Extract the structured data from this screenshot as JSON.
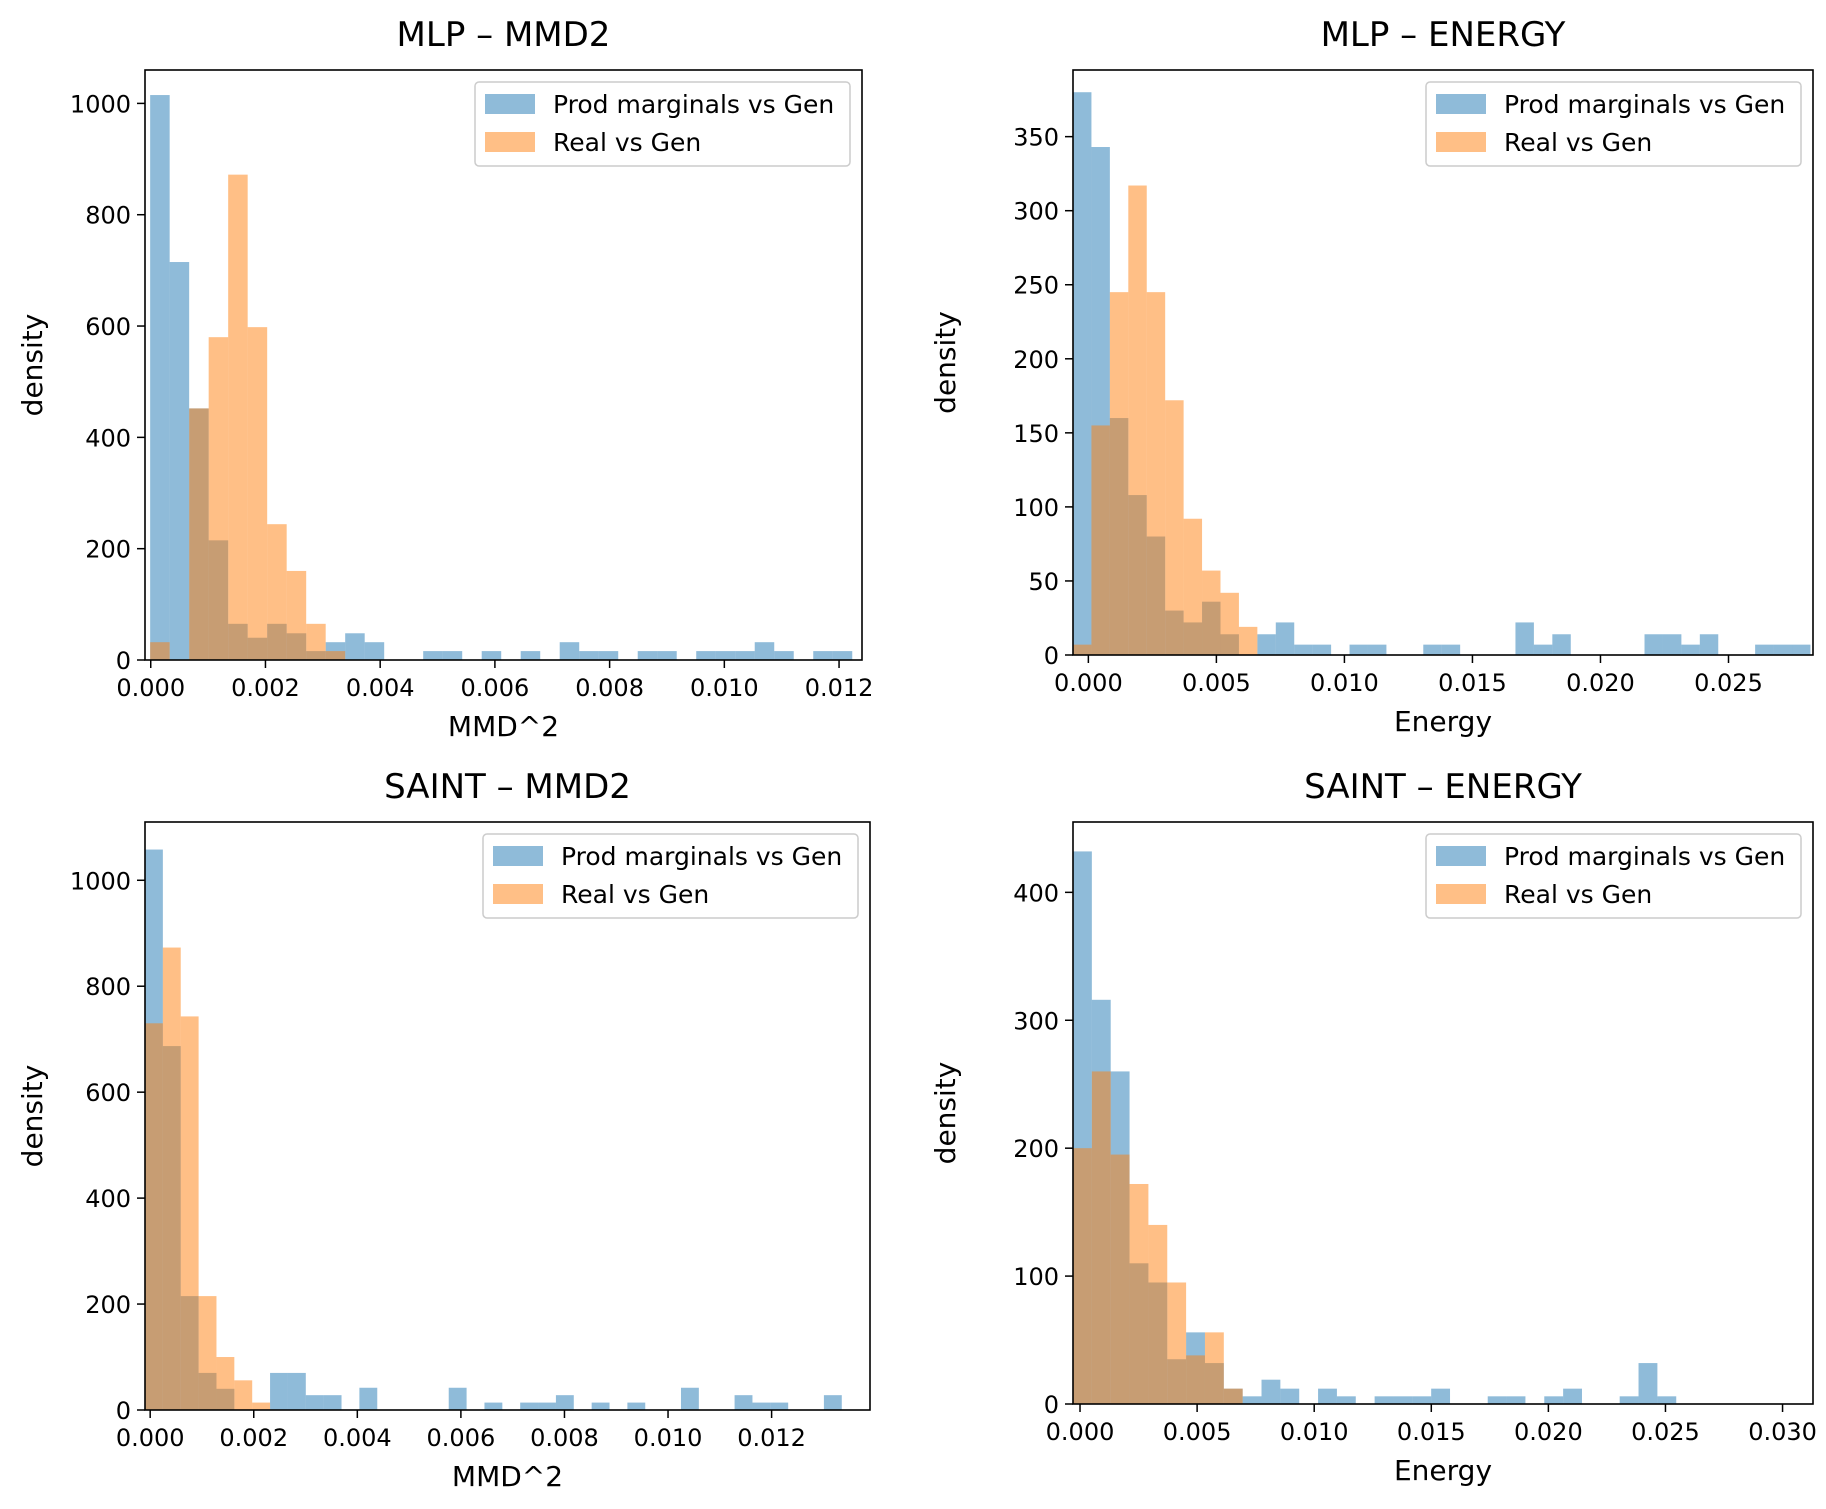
{
  "colors": {
    "prod": "#1f77b4",
    "real": "#ff7f0e",
    "bar_alpha": 0.5,
    "legend_border": "#cccccc",
    "axis": "#000000"
  },
  "chart_data": [
    {
      "type": "bar",
      "title": "MLP – MMD2",
      "xlabel": "MMD^2",
      "ylabel": "density",
      "xlim": [
        -0.0001,
        0.0124
      ],
      "ylim": [
        0,
        1060
      ],
      "xticks": [
        0.0,
        0.002,
        0.004,
        0.006,
        0.008,
        0.01,
        0.012
      ],
      "xtick_labels": [
        "0.000",
        "0.002",
        "0.004",
        "0.006",
        "0.008",
        "0.010",
        "0.012"
      ],
      "yticks": [
        0,
        200,
        400,
        600,
        800,
        1000
      ],
      "ytick_labels": [
        "0",
        "200",
        "400",
        "600",
        "800",
        "1000"
      ],
      "legend": "top-right",
      "series": [
        {
          "name": "Prod marginals vs Gen",
          "color_key": "prod",
          "bin_start": -1e-05,
          "bin_width": 0.00034,
          "values": [
            1015,
            715,
            452,
            215,
            65,
            40,
            65,
            48,
            16,
            32,
            48,
            32,
            0,
            0,
            16,
            16,
            0,
            16,
            0,
            16,
            0,
            32,
            16,
            16,
            0,
            16,
            16,
            0,
            16,
            16,
            16,
            32,
            16,
            0,
            16,
            16
          ]
        },
        {
          "name": "Real vs Gen",
          "color_key": "real",
          "bin_start": -1e-05,
          "bin_width": 0.00034,
          "values": [
            32,
            0,
            452,
            580,
            872,
            598,
            244,
            160,
            65,
            16,
            0,
            0,
            0,
            0,
            0,
            0,
            0,
            0,
            0,
            0,
            0,
            0,
            0,
            0,
            0,
            0,
            0,
            0,
            0,
            0,
            0,
            0,
            0,
            0,
            0,
            0
          ]
        }
      ]
    },
    {
      "type": "bar",
      "title": "MLP – ENERGY",
      "xlabel": "Energy",
      "ylabel": "density",
      "xlim": [
        -0.0006,
        0.0283
      ],
      "ylim": [
        0,
        395
      ],
      "xticks": [
        0.0,
        0.005,
        0.01,
        0.015,
        0.02,
        0.025
      ],
      "xtick_labels": [
        "0.000",
        "0.005",
        "0.010",
        "0.015",
        "0.020",
        "0.025"
      ],
      "yticks": [
        0,
        50,
        100,
        150,
        200,
        250,
        300,
        350
      ],
      "ytick_labels": [
        "0",
        "50",
        "100",
        "150",
        "200",
        "250",
        "300",
        "350"
      ],
      "legend": "top-right",
      "series": [
        {
          "name": "Prod marginals vs Gen",
          "color_key": "prod",
          "bin_start": -0.0006,
          "bin_width": 0.00072,
          "values": [
            380,
            343,
            160,
            108,
            80,
            30,
            22,
            36,
            14,
            0,
            14,
            22,
            7,
            7,
            0,
            7,
            7,
            0,
            0,
            7,
            7,
            0,
            0,
            0,
            22,
            7,
            14,
            0,
            0,
            0,
            0,
            14,
            14,
            7,
            14,
            0,
            0,
            7,
            7,
            7
          ]
        },
        {
          "name": "Real vs Gen",
          "color_key": "real",
          "bin_start": -0.0006,
          "bin_width": 0.00072,
          "values": [
            7,
            155,
            245,
            317,
            245,
            172,
            92,
            57,
            42,
            19,
            0,
            0,
            0,
            0,
            0,
            0,
            0,
            0,
            0,
            0,
            0,
            0,
            0,
            0,
            0,
            0,
            0,
            0,
            0,
            0,
            0,
            0,
            0,
            0,
            0,
            0,
            0,
            0,
            0,
            0
          ]
        }
      ]
    },
    {
      "type": "bar",
      "title": "SAINT – MMD2",
      "xlabel": "MMD^2",
      "ylabel": "density",
      "xlim": [
        -0.0001,
        0.0139
      ],
      "ylim": [
        0,
        1110
      ],
      "xticks": [
        0.0,
        0.002,
        0.004,
        0.006,
        0.008,
        0.01,
        0.012
      ],
      "xtick_labels": [
        "0.000",
        "0.002",
        "0.004",
        "0.006",
        "0.008",
        "0.010",
        "0.012"
      ],
      "yticks": [
        0,
        200,
        400,
        600,
        800,
        1000
      ],
      "ytick_labels": [
        "0",
        "200",
        "400",
        "600",
        "800",
        "1000"
      ],
      "legend": "top-right",
      "series": [
        {
          "name": "Prod marginals vs Gen",
          "color_key": "prod",
          "bin_start": -0.0001,
          "bin_width": 0.000345,
          "values": [
            1058,
            687,
            215,
            70,
            40,
            0,
            0,
            70,
            70,
            28,
            28,
            0,
            42,
            0,
            0,
            0,
            0,
            42,
            0,
            14,
            0,
            14,
            14,
            28,
            0,
            14,
            0,
            14,
            0,
            0,
            42,
            0,
            0,
            28,
            14,
            14,
            0,
            0,
            28,
            0
          ]
        },
        {
          "name": "Real vs Gen",
          "color_key": "real",
          "bin_start": -0.0001,
          "bin_width": 0.000345,
          "values": [
            730,
            873,
            743,
            215,
            100,
            56,
            14,
            0,
            0,
            0,
            0,
            0,
            0,
            0,
            0,
            0,
            0,
            0,
            0,
            0,
            0,
            0,
            0,
            0,
            0,
            0,
            0,
            0,
            0,
            0,
            0,
            0,
            0,
            0,
            0,
            0,
            0,
            0,
            0,
            0
          ]
        }
      ]
    },
    {
      "type": "bar",
      "title": "SAINT – ENERGY",
      "xlabel": "Energy",
      "ylabel": "density",
      "xlim": [
        -0.0003,
        0.0313
      ],
      "ylim": [
        0,
        455
      ],
      "xticks": [
        0.0,
        0.005,
        0.01,
        0.015,
        0.02,
        0.025,
        0.03
      ],
      "xtick_labels": [
        "0.000",
        "0.005",
        "0.010",
        "0.015",
        "0.020",
        "0.025",
        "0.030"
      ],
      "yticks": [
        0,
        100,
        200,
        300,
        400
      ],
      "ytick_labels": [
        "0",
        "100",
        "200",
        "300",
        "400"
      ],
      "legend": "top-right",
      "series": [
        {
          "name": "Prod marginals vs Gen",
          "color_key": "prod",
          "bin_start": -0.0003,
          "bin_width": 0.000805,
          "values": [
            432,
            316,
            260,
            110,
            95,
            35,
            56,
            32,
            12,
            6,
            19,
            12,
            0,
            12,
            6,
            0,
            6,
            6,
            6,
            12,
            0,
            0,
            6,
            6,
            0,
            6,
            12,
            0,
            0,
            6,
            32,
            6,
            0,
            0,
            0,
            0,
            0,
            0,
            0,
            0
          ]
        },
        {
          "name": "Real vs Gen",
          "color_key": "real",
          "bin_start": -0.0003,
          "bin_width": 0.000805,
          "values": [
            200,
            260,
            195,
            172,
            140,
            95,
            38,
            56,
            12,
            0,
            0,
            0,
            0,
            0,
            0,
            0,
            0,
            0,
            0,
            0,
            0,
            0,
            0,
            0,
            0,
            0,
            0,
            0,
            0,
            0,
            0,
            0,
            0,
            0,
            0,
            0,
            0,
            0,
            0,
            0
          ]
        }
      ]
    }
  ]
}
